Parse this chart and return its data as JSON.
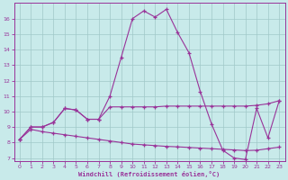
{
  "bg_color": "#c8eaea",
  "grid_color": "#a0c8c8",
  "line_color": "#993399",
  "xlabel": "Windchill (Refroidissement éolien,°C)",
  "xlim": [
    -0.5,
    23.5
  ],
  "ylim": [
    6.8,
    17.0
  ],
  "yticks": [
    7,
    8,
    9,
    10,
    11,
    12,
    13,
    14,
    15,
    16
  ],
  "xticks": [
    0,
    1,
    2,
    3,
    4,
    5,
    6,
    7,
    8,
    9,
    10,
    11,
    12,
    13,
    14,
    15,
    16,
    17,
    18,
    19,
    20,
    21,
    22,
    23
  ],
  "s1_x": [
    0,
    1,
    2,
    3,
    4,
    5,
    6,
    7,
    8,
    9,
    10,
    11,
    12,
    13,
    14,
    15,
    16,
    17,
    18,
    19,
    20,
    21,
    22,
    23
  ],
  "s1_y": [
    8.2,
    9.0,
    9.0,
    9.3,
    10.2,
    10.1,
    9.5,
    9.5,
    11.0,
    13.5,
    16.0,
    16.5,
    16.1,
    16.6,
    15.1,
    13.8,
    11.3,
    9.2,
    7.5,
    7.0,
    6.9,
    10.2,
    8.3,
    10.7
  ],
  "s2_x": [
    0,
    1,
    2,
    3,
    4,
    5,
    6,
    7,
    8,
    9,
    10,
    11,
    12,
    13,
    14,
    15,
    16,
    17,
    18,
    19,
    20,
    21,
    22,
    23
  ],
  "s2_y": [
    8.2,
    8.85,
    8.7,
    8.6,
    8.5,
    8.4,
    8.3,
    8.2,
    8.1,
    8.0,
    7.9,
    7.85,
    7.8,
    7.75,
    7.72,
    7.68,
    7.64,
    7.6,
    7.56,
    7.52,
    7.48,
    7.5,
    7.6,
    7.7
  ],
  "s3_x": [
    0,
    1,
    2,
    3,
    4,
    5,
    6,
    7,
    8,
    9,
    10,
    11,
    12,
    13,
    14,
    15,
    16,
    17,
    18,
    19,
    20,
    21,
    22,
    23
  ],
  "s3_y": [
    8.2,
    9.0,
    9.0,
    9.3,
    10.2,
    10.1,
    9.5,
    9.5,
    10.3,
    10.3,
    10.3,
    10.3,
    10.3,
    10.35,
    10.35,
    10.35,
    10.35,
    10.35,
    10.35,
    10.35,
    10.35,
    10.4,
    10.5,
    10.7
  ]
}
